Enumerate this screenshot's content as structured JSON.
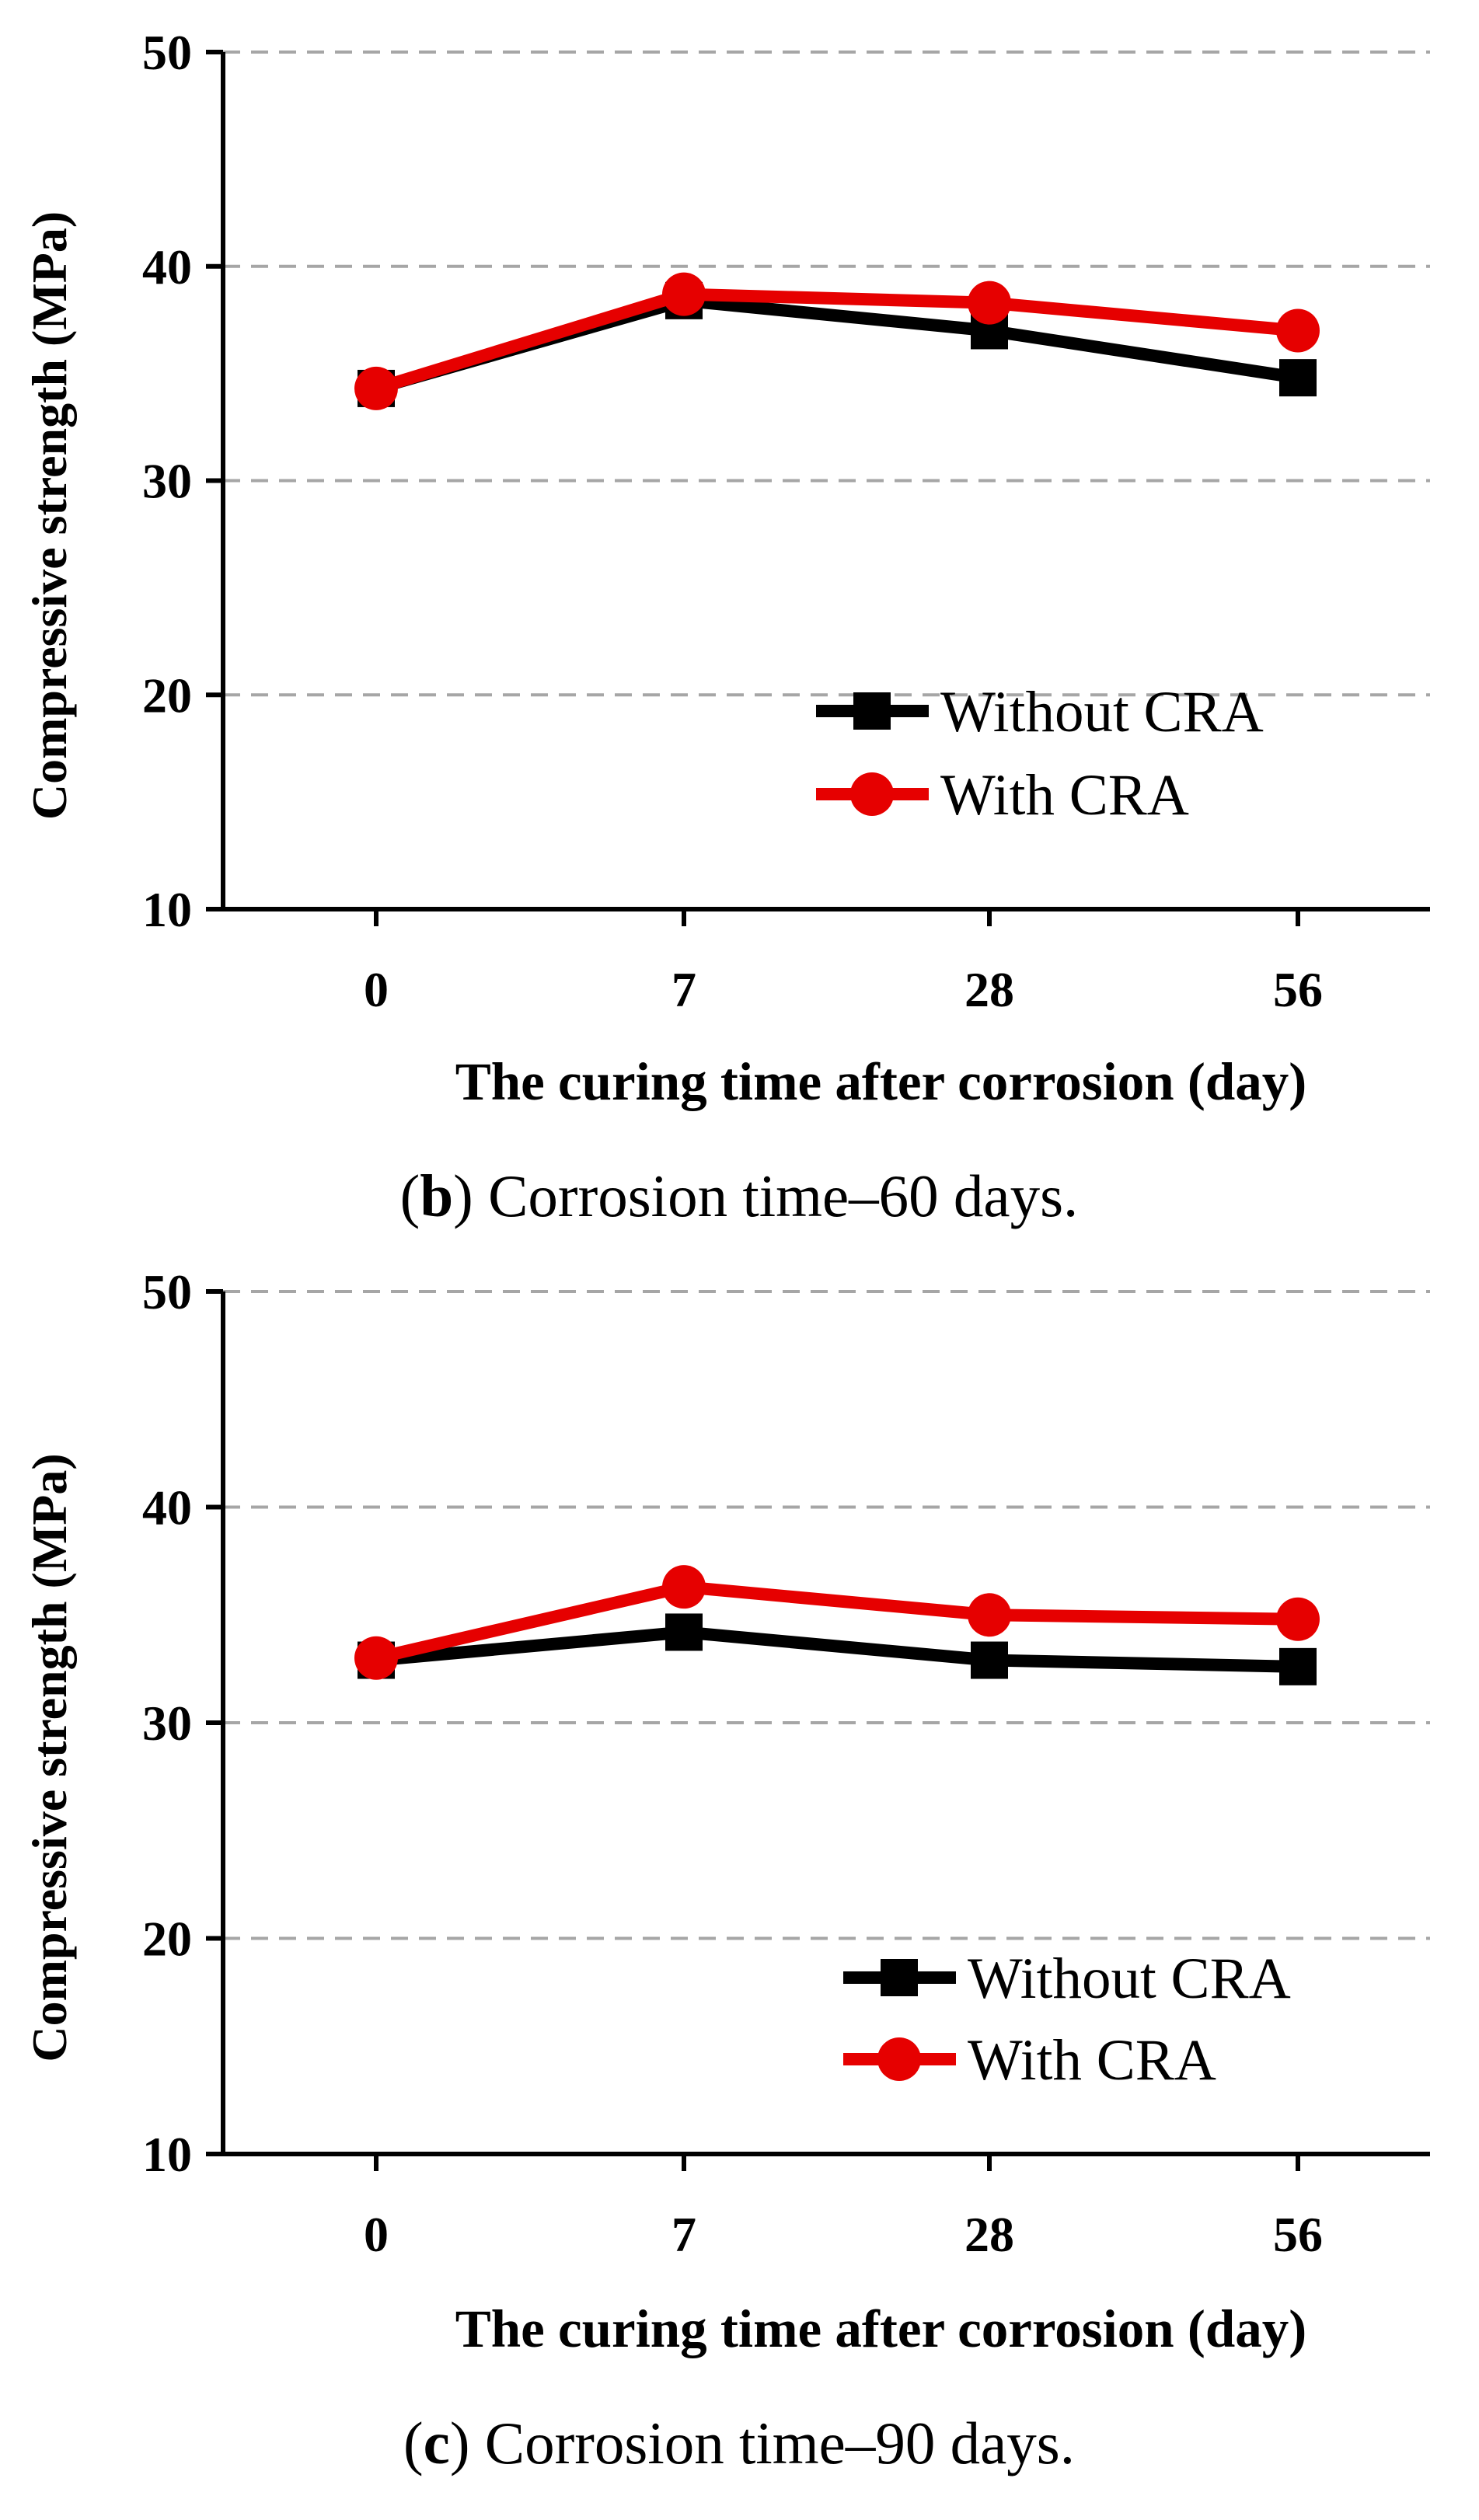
{
  "chart_data": [
    {
      "type": "line",
      "caption_letter": "b",
      "caption_text": " Corrosion time–60 days.",
      "categories": [
        "0",
        "7",
        "28",
        "56"
      ],
      "series": [
        {
          "name": "Without CRA",
          "color": "#000000",
          "marker": "square",
          "values": [
            34.3,
            38.4,
            37.0,
            34.8
          ]
        },
        {
          "name": "With CRA",
          "color": "#e60000",
          "marker": "circle",
          "values": [
            34.3,
            38.7,
            38.3,
            37.0
          ]
        }
      ],
      "xlabel": "The curing time after corrosion (day)",
      "ylabel": "Compressive strength (MPa)",
      "ylim": [
        10,
        50
      ],
      "yticks": [
        "10",
        "20",
        "30",
        "40",
        "50"
      ],
      "grid": true,
      "legend_position": "bottom-right"
    },
    {
      "type": "line",
      "caption_letter": "c",
      "caption_text": " Corrosion time–90 days.",
      "categories": [
        "0",
        "7",
        "28",
        "56"
      ],
      "series": [
        {
          "name": "Without CRA",
          "color": "#000000",
          "marker": "square",
          "values": [
            32.9,
            34.2,
            32.9,
            32.6
          ]
        },
        {
          "name": "With CRA",
          "color": "#e60000",
          "marker": "circle",
          "values": [
            33.0,
            36.3,
            35.0,
            34.8
          ]
        }
      ],
      "xlabel": "The curing time after corrosion (day)",
      "ylabel": "Compressive strength (MPa)",
      "ylim": [
        10,
        50
      ],
      "yticks": [
        "10",
        "20",
        "30",
        "40",
        "50"
      ],
      "grid": true,
      "legend_position": "bottom-right"
    }
  ]
}
